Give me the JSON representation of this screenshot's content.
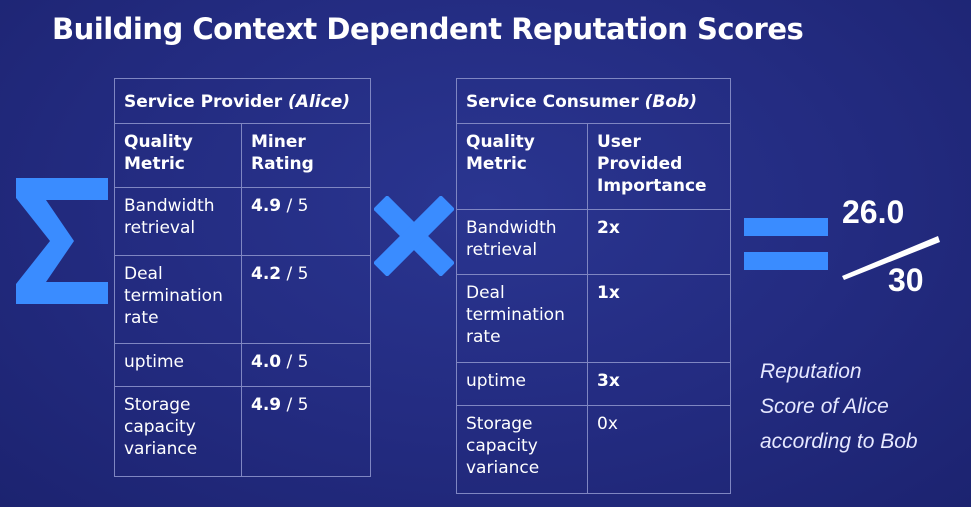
{
  "title": "Building Context Dependent Reputation Scores",
  "provider": {
    "header_prefix": "Service Provider ",
    "header_name": "(Alice)",
    "col1": "Quality Metric",
    "col2": "Miner Rating",
    "rows": [
      {
        "metric": "Bandwidth retrieval",
        "rating": "4.9",
        "suffix": " / 5"
      },
      {
        "metric": "Deal termination rate",
        "rating": "4.2",
        "suffix": " / 5"
      },
      {
        "metric": "uptime",
        "rating": "4.0",
        "suffix": " / 5"
      },
      {
        "metric": "Storage capacity variance",
        "rating": "4.9",
        "suffix": " / 5"
      }
    ]
  },
  "consumer": {
    "header_prefix": "Service Consumer ",
    "header_name": "(Bob)",
    "col1": "Quality Metric",
    "col2": "User Provided Importance",
    "rows": [
      {
        "metric": "Bandwidth retrieval",
        "importance": "2x"
      },
      {
        "metric": "Deal termination rate",
        "importance": "1x"
      },
      {
        "metric": "uptime",
        "importance": "3x"
      },
      {
        "metric": "Storage capacity variance",
        "importance": "0x"
      }
    ]
  },
  "result": {
    "numerator": "26.0",
    "denominator": "30",
    "caption_lines": [
      "Reputation",
      "Score of Alice",
      "according to Bob"
    ]
  },
  "symbols": {
    "sum": "sigma-icon",
    "multiply": "multiply-icon",
    "equals": "equals-icon",
    "accent_color": "#3a8cff"
  }
}
